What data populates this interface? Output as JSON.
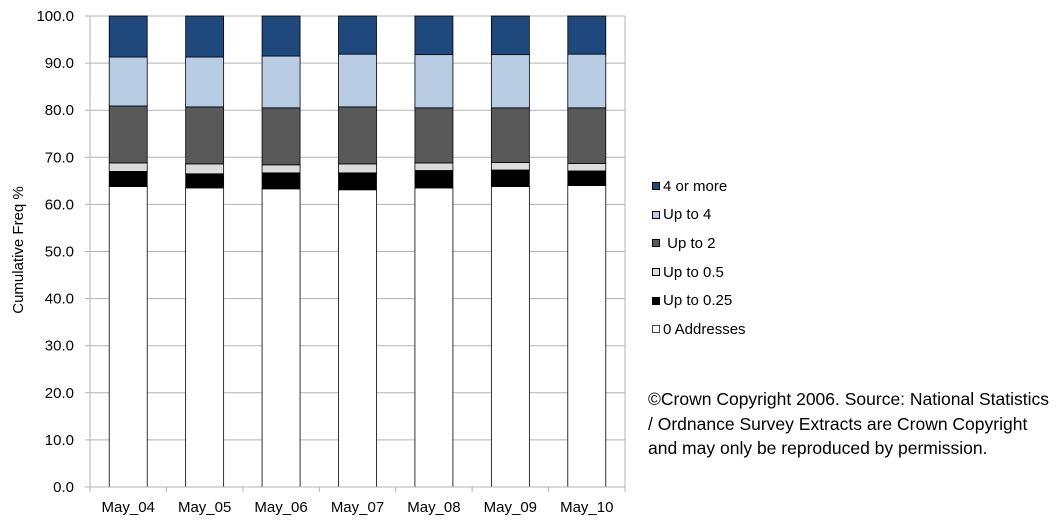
{
  "chart_data": {
    "type": "bar",
    "stacked": true,
    "categories": [
      "May_04",
      "May_05",
      "May_06",
      "May_07",
      "May_08",
      "May_09",
      "May_10"
    ],
    "ylabel": "Cumulative Freq %",
    "xlabel": "",
    "ylim": [
      0,
      100
    ],
    "yticks": [
      "0.0",
      "10.0",
      "20.0",
      "30.0",
      "40.0",
      "50.0",
      "60.0",
      "70.0",
      "80.0",
      "90.0",
      "100.0"
    ],
    "grid": true,
    "legend_position": "right",
    "series": [
      {
        "name": "0 Addresses",
        "color": "#ffffff",
        "values": [
          63.8,
          63.5,
          63.3,
          63.1,
          63.5,
          63.8,
          64.0
        ]
      },
      {
        "name": "Up to 0.25",
        "color": "#000000",
        "values": [
          3.2,
          3.0,
          3.4,
          3.6,
          3.7,
          3.5,
          3.1
        ]
      },
      {
        "name": "Up to 0.5",
        "color": "#dcdcdc",
        "values": [
          1.8,
          2.1,
          1.7,
          1.9,
          1.6,
          1.6,
          1.6
        ]
      },
      {
        "name": " Up to 2",
        "color": "#595959",
        "values": [
          12.1,
          12.1,
          12.1,
          12.1,
          11.7,
          11.6,
          11.8
        ]
      },
      {
        "name": "Up to 4",
        "color": "#b8cce4",
        "values": [
          10.4,
          10.6,
          11.0,
          11.2,
          11.3,
          11.3,
          11.4
        ]
      },
      {
        "name": "4 or more",
        "color": "#1f497d",
        "values": [
          8.7,
          8.7,
          8.5,
          8.1,
          8.2,
          8.2,
          8.1
        ]
      }
    ]
  },
  "legend": {
    "items": [
      {
        "label": "4 or more",
        "color": "#1f497d"
      },
      {
        "label": "Up to 4",
        "color": "#b8cce4"
      },
      {
        "label": " Up to 2",
        "color": "#595959"
      },
      {
        "label": "Up to 0.5",
        "color": "#dcdcdc"
      },
      {
        "label": "Up to 0.25",
        "color": "#000000"
      },
      {
        "label": "0 Addresses",
        "color": "#ffffff"
      }
    ]
  },
  "copyright": {
    "text": "©Crown Copyright 2006.  Source: National Statistics / Ordnance Survey Extracts are Crown Copyright and may only be reproduced by permission."
  }
}
